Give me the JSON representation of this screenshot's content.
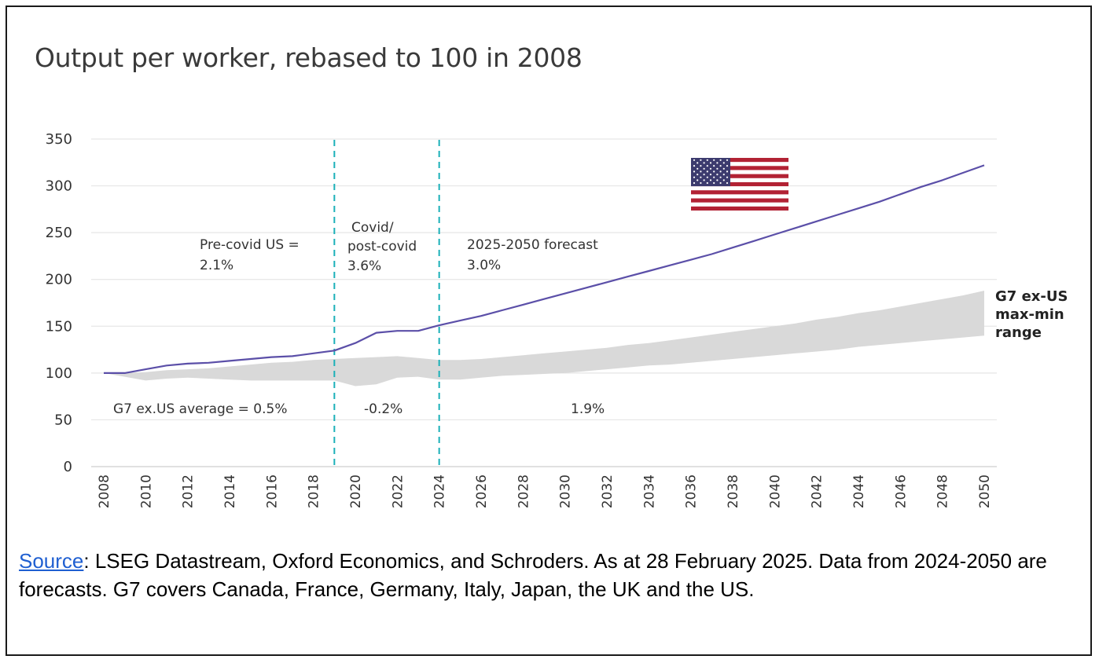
{
  "chart_data": {
    "type": "line",
    "title": "Output per worker, rebased to 100 in 2008",
    "y_axis": {
      "ylim": [
        0,
        350
      ],
      "ticks": [
        0,
        50,
        100,
        150,
        200,
        250,
        300,
        350
      ]
    },
    "x_axis": {
      "xlim": [
        2008,
        2050
      ],
      "ticks": [
        2008,
        2010,
        2012,
        2014,
        2016,
        2018,
        2020,
        2022,
        2024,
        2026,
        2028,
        2030,
        2032,
        2034,
        2036,
        2038,
        2040,
        2042,
        2044,
        2046,
        2048,
        2050
      ]
    },
    "grid": "horizontal",
    "us_series": {
      "color": "#5b4fa8",
      "points": [
        [
          2008,
          100
        ],
        [
          2009,
          100
        ],
        [
          2010,
          104
        ],
        [
          2011,
          108
        ],
        [
          2012,
          110
        ],
        [
          2013,
          111
        ],
        [
          2014,
          113
        ],
        [
          2015,
          115
        ],
        [
          2016,
          117
        ],
        [
          2017,
          118
        ],
        [
          2018,
          121
        ],
        [
          2019,
          124
        ],
        [
          2020,
          132
        ],
        [
          2021,
          143
        ],
        [
          2022,
          145
        ],
        [
          2023,
          145
        ],
        [
          2024,
          151
        ],
        [
          2025,
          156
        ],
        [
          2026,
          161
        ],
        [
          2027,
          167
        ],
        [
          2028,
          173
        ],
        [
          2029,
          179
        ],
        [
          2030,
          185
        ],
        [
          2031,
          191
        ],
        [
          2032,
          197
        ],
        [
          2033,
          203
        ],
        [
          2034,
          209
        ],
        [
          2035,
          215
        ],
        [
          2036,
          221
        ],
        [
          2037,
          227
        ],
        [
          2038,
          234
        ],
        [
          2039,
          241
        ],
        [
          2040,
          248
        ],
        [
          2041,
          255
        ],
        [
          2042,
          262
        ],
        [
          2043,
          269
        ],
        [
          2044,
          276
        ],
        [
          2045,
          283
        ],
        [
          2046,
          291
        ],
        [
          2047,
          299
        ],
        [
          2048,
          306
        ],
        [
          2049,
          314
        ],
        [
          2050,
          322
        ]
      ]
    },
    "g7_range": {
      "label": "G7 ex-US max-min range",
      "color": "#d9d9d9",
      "max": [
        [
          2008,
          100
        ],
        [
          2009,
          100
        ],
        [
          2010,
          101
        ],
        [
          2011,
          103
        ],
        [
          2012,
          104
        ],
        [
          2013,
          105
        ],
        [
          2014,
          107
        ],
        [
          2015,
          109
        ],
        [
          2016,
          111
        ],
        [
          2017,
          112
        ],
        [
          2018,
          114
        ],
        [
          2019,
          115
        ],
        [
          2020,
          116
        ],
        [
          2021,
          117
        ],
        [
          2022,
          118
        ],
        [
          2023,
          116
        ],
        [
          2024,
          114
        ],
        [
          2025,
          114
        ],
        [
          2026,
          115
        ],
        [
          2027,
          117
        ],
        [
          2028,
          119
        ],
        [
          2029,
          121
        ],
        [
          2030,
          123
        ],
        [
          2031,
          125
        ],
        [
          2032,
          127
        ],
        [
          2033,
          130
        ],
        [
          2034,
          132
        ],
        [
          2035,
          135
        ],
        [
          2036,
          138
        ],
        [
          2037,
          141
        ],
        [
          2038,
          144
        ],
        [
          2039,
          147
        ],
        [
          2040,
          150
        ],
        [
          2041,
          153
        ],
        [
          2042,
          157
        ],
        [
          2043,
          160
        ],
        [
          2044,
          164
        ],
        [
          2045,
          167
        ],
        [
          2046,
          171
        ],
        [
          2047,
          175
        ],
        [
          2048,
          179
        ],
        [
          2049,
          183
        ],
        [
          2050,
          188
        ]
      ],
      "min": [
        [
          2008,
          100
        ],
        [
          2009,
          96
        ],
        [
          2010,
          92
        ],
        [
          2011,
          94
        ],
        [
          2012,
          95
        ],
        [
          2013,
          94
        ],
        [
          2014,
          93
        ],
        [
          2015,
          92
        ],
        [
          2016,
          92
        ],
        [
          2017,
          92
        ],
        [
          2018,
          92
        ],
        [
          2019,
          92
        ],
        [
          2020,
          86
        ],
        [
          2021,
          88
        ],
        [
          2022,
          95
        ],
        [
          2023,
          96
        ],
        [
          2024,
          93
        ],
        [
          2025,
          93
        ],
        [
          2026,
          95
        ],
        [
          2027,
          97
        ],
        [
          2028,
          98
        ],
        [
          2029,
          99
        ],
        [
          2030,
          100
        ],
        [
          2031,
          102
        ],
        [
          2032,
          104
        ],
        [
          2033,
          106
        ],
        [
          2034,
          108
        ],
        [
          2035,
          109
        ],
        [
          2036,
          111
        ],
        [
          2037,
          113
        ],
        [
          2038,
          115
        ],
        [
          2039,
          117
        ],
        [
          2040,
          119
        ],
        [
          2041,
          121
        ],
        [
          2042,
          123
        ],
        [
          2043,
          125
        ],
        [
          2044,
          128
        ],
        [
          2045,
          130
        ],
        [
          2046,
          132
        ],
        [
          2047,
          134
        ],
        [
          2048,
          136
        ],
        [
          2049,
          138
        ],
        [
          2050,
          140
        ]
      ]
    },
    "dividers": {
      "color": "#1ab0b8",
      "years": [
        2019,
        2024
      ]
    },
    "annotations": {
      "us_pre": [
        "Pre-covid US =",
        "2.1%"
      ],
      "us_covid": [
        "Covid/",
        "post-covid",
        "3.6%"
      ],
      "us_forecast": [
        "2025-2050 forecast",
        "3.0%"
      ],
      "g7_pre": "G7 ex.US average = 0.5%",
      "g7_covid": "-0.2%",
      "g7_forecast": "1.9%",
      "range_label": [
        "G7 ex-US",
        "max-min",
        "range"
      ]
    },
    "flag": "us-flag-icon"
  },
  "source": {
    "link_text": "Source",
    "text": ":  LSEG Datastream, Oxford Economics, and Schroders. As at 28 February 2025. Data from 2024-2050 are forecasts. G7 covers Canada, France, Germany, Italy, Japan, the UK and the US."
  }
}
